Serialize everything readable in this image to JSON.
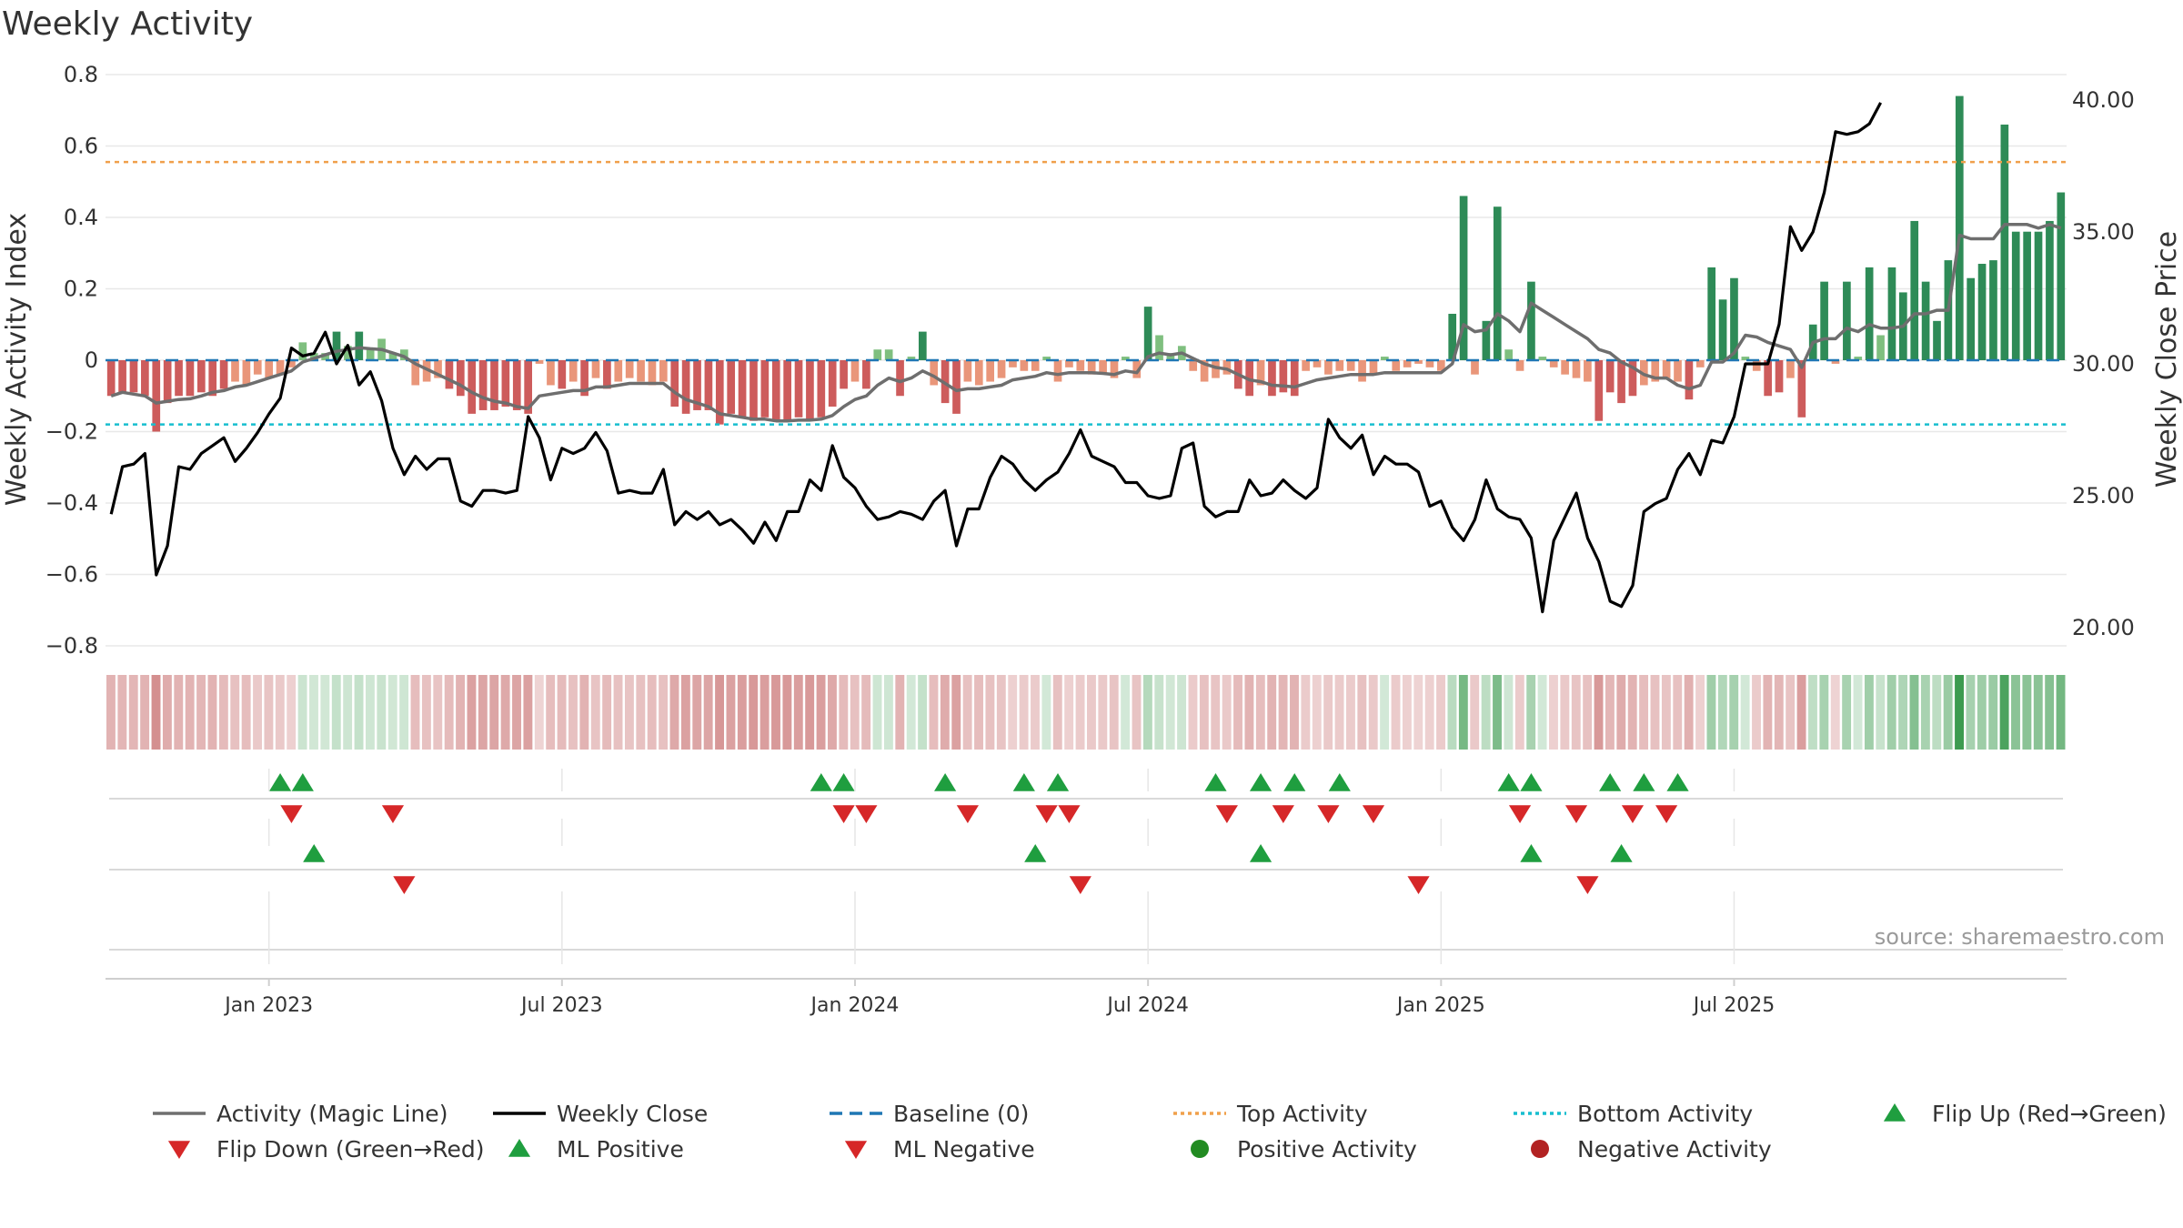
{
  "colors": {
    "pos_strong": "#2e8b57",
    "pos_light": "#7fbf7f",
    "neg_strong": "#cd5c5c",
    "neg_light": "#e9967a",
    "magic_line": "#6e6e6e",
    "close_line": "#000000",
    "baseline": "#1f77b4",
    "top_line": "#f0a04b",
    "bottom_line": "#17becf",
    "up_marker": "#1f9e3f",
    "down_marker": "#d62728",
    "positive_dot": "#228b22",
    "negative_dot": "#b22222",
    "grid": "#e8e8e8",
    "strip_red": "#e8b4b4",
    "strip_green": "#a8d8a8"
  },
  "chart_data": {
    "type": "bar+line",
    "title": "Weekly Activity",
    "ylabel": "Weekly Activity Index",
    "y2label": "Weekly Close Price",
    "ylim": [
      -0.85,
      0.82
    ],
    "y2lim": [
      18.1,
      40.8
    ],
    "yticks": [
      "0.8",
      "0.6",
      "0.4",
      "0.2",
      "0",
      "−0.2",
      "−0.4",
      "−0.6",
      "−0.8"
    ],
    "yticks_values": [
      0.8,
      0.6,
      0.4,
      0.2,
      0,
      -0.2,
      -0.4,
      -0.6,
      -0.8
    ],
    "y2ticks": [
      "40.00",
      "35.00",
      "30.00",
      "25.00",
      "20.00"
    ],
    "y2ticks_values": [
      40,
      35,
      30,
      25,
      20
    ],
    "xticks": [
      "Jan 2023",
      "Jul 2023",
      "Jan 2024",
      "Jul 2024",
      "Jan 2025",
      "Jul 2025"
    ],
    "xticks_week_index": [
      14.5,
      40.5,
      66.5,
      92.5,
      118.5,
      144.5
    ],
    "top_activity": 0.555,
    "bottom_activity": -0.18,
    "activity": [
      -0.1,
      -0.09,
      -0.09,
      -0.1,
      -0.2,
      -0.12,
      -0.1,
      -0.1,
      -0.09,
      -0.1,
      -0.08,
      -0.06,
      -0.07,
      -0.04,
      -0.05,
      -0.04,
      -0.02,
      0.05,
      0.02,
      0.02,
      0.08,
      0.04,
      0.08,
      0.03,
      0.06,
      0.02,
      0.03,
      -0.07,
      -0.06,
      -0.05,
      -0.08,
      -0.1,
      -0.15,
      -0.14,
      -0.14,
      -0.13,
      -0.14,
      -0.15,
      -0.01,
      -0.07,
      -0.08,
      -0.06,
      -0.1,
      -0.05,
      -0.08,
      -0.06,
      -0.05,
      -0.06,
      -0.07,
      -0.06,
      -0.13,
      -0.15,
      -0.14,
      -0.14,
      -0.18,
      -0.15,
      -0.16,
      -0.17,
      -0.16,
      -0.17,
      -0.17,
      -0.16,
      -0.17,
      -0.16,
      -0.13,
      -0.08,
      -0.06,
      -0.08,
      0.03,
      0.03,
      -0.1,
      0.01,
      0.08,
      -0.07,
      -0.12,
      -0.15,
      -0.06,
      -0.07,
      -0.06,
      -0.05,
      -0.02,
      -0.03,
      -0.03,
      0.01,
      -0.06,
      -0.02,
      -0.03,
      -0.04,
      -0.04,
      -0.05,
      0.01,
      -0.05,
      0.15,
      0.07,
      0.02,
      0.04,
      -0.03,
      -0.06,
      -0.05,
      -0.04,
      -0.08,
      -0.1,
      -0.07,
      -0.1,
      -0.09,
      -0.1,
      -0.03,
      -0.02,
      -0.04,
      -0.03,
      -0.03,
      -0.06,
      -0.04,
      0.01,
      -0.03,
      -0.02,
      -0.01,
      -0.02,
      -0.03,
      0.13,
      0.46,
      -0.04,
      0.11,
      0.43,
      0.03,
      -0.03,
      0.22,
      0.01,
      -0.02,
      -0.04,
      -0.05,
      -0.06,
      -0.17,
      -0.09,
      -0.12,
      -0.1,
      -0.07,
      -0.06,
      -0.05,
      -0.06,
      -0.11,
      -0.02,
      0.26,
      0.17,
      0.23,
      0.01,
      -0.03,
      -0.1,
      -0.09,
      -0.05,
      -0.16,
      0.1,
      0.22,
      -0.01,
      0.22,
      0.01,
      0.26,
      0.07,
      0.26,
      0.19,
      0.39,
      0.22,
      0.11,
      0.28,
      0.74,
      0.23,
      0.27,
      0.28,
      0.66,
      0.36,
      0.36,
      0.36,
      0.39,
      0.47
    ],
    "magic_line": [
      -0.1,
      -0.09,
      -0.095,
      -0.1,
      -0.12,
      -0.115,
      -0.11,
      -0.108,
      -0.1,
      -0.09,
      -0.085,
      -0.075,
      -0.07,
      -0.06,
      -0.05,
      -0.04,
      -0.03,
      -0.005,
      0.005,
      0.015,
      0.025,
      0.03,
      0.035,
      0.032,
      0.03,
      0.02,
      0.01,
      -0.01,
      -0.025,
      -0.04,
      -0.055,
      -0.07,
      -0.09,
      -0.105,
      -0.115,
      -0.12,
      -0.13,
      -0.135,
      -0.1,
      -0.095,
      -0.09,
      -0.085,
      -0.085,
      -0.075,
      -0.075,
      -0.07,
      -0.065,
      -0.065,
      -0.065,
      -0.065,
      -0.09,
      -0.11,
      -0.12,
      -0.13,
      -0.15,
      -0.155,
      -0.16,
      -0.165,
      -0.165,
      -0.17,
      -0.17,
      -0.168,
      -0.168,
      -0.165,
      -0.155,
      -0.13,
      -0.11,
      -0.1,
      -0.07,
      -0.05,
      -0.06,
      -0.05,
      -0.03,
      -0.045,
      -0.065,
      -0.085,
      -0.08,
      -0.08,
      -0.075,
      -0.07,
      -0.055,
      -0.05,
      -0.045,
      -0.035,
      -0.04,
      -0.035,
      -0.035,
      -0.035,
      -0.037,
      -0.04,
      -0.03,
      -0.035,
      0.01,
      0.02,
      0.015,
      0.02,
      0.005,
      -0.01,
      -0.02,
      -0.025,
      -0.04,
      -0.055,
      -0.06,
      -0.07,
      -0.072,
      -0.075,
      -0.065,
      -0.055,
      -0.05,
      -0.045,
      -0.04,
      -0.04,
      -0.04,
      -0.035,
      -0.035,
      -0.035,
      -0.035,
      -0.035,
      -0.035,
      -0.01,
      0.1,
      0.08,
      0.085,
      0.13,
      0.11,
      0.08,
      0.16,
      0.14,
      0.12,
      0.1,
      0.08,
      0.06,
      0.03,
      0.02,
      -0.005,
      -0.02,
      -0.04,
      -0.05,
      -0.05,
      -0.07,
      -0.08,
      -0.07,
      -0.005,
      -0.005,
      0.02,
      0.07,
      0.065,
      0.05,
      0.04,
      0.03,
      -0.02,
      0.05,
      0.06,
      0.06,
      0.09,
      0.08,
      0.1,
      0.09,
      0.09,
      0.095,
      0.13,
      0.13,
      0.14,
      0.14,
      0.35,
      0.34,
      0.34,
      0.34,
      0.38,
      0.38,
      0.38,
      0.37,
      0.38,
      0.37
    ],
    "weekly_close": [
      24.3,
      26.1,
      26.2,
      26.6,
      22.0,
      23.1,
      26.1,
      26.0,
      26.6,
      26.9,
      27.2,
      26.3,
      26.8,
      27.4,
      28.1,
      28.7,
      30.6,
      30.3,
      30.4,
      31.2,
      30.0,
      30.7,
      29.2,
      29.7,
      28.6,
      26.8,
      25.8,
      26.5,
      26.0,
      26.4,
      26.4,
      24.8,
      24.6,
      25.2,
      25.2,
      25.1,
      25.2,
      28.0,
      27.2,
      25.6,
      26.8,
      26.6,
      26.8,
      27.4,
      26.7,
      25.1,
      25.2,
      25.1,
      25.1,
      26.0,
      23.9,
      24.4,
      24.1,
      24.4,
      23.9,
      24.1,
      23.7,
      23.2,
      24.0,
      23.3,
      24.4,
      24.4,
      25.6,
      25.2,
      26.9,
      25.7,
      25.3,
      24.6,
      24.1,
      24.2,
      24.4,
      24.3,
      24.1,
      24.8,
      25.2,
      23.1,
      24.5,
      24.5,
      25.7,
      26.5,
      26.2,
      25.6,
      25.2,
      25.6,
      25.9,
      26.6,
      27.5,
      26.5,
      26.3,
      26.1,
      25.5,
      25.5,
      25.0,
      24.9,
      25.0,
      26.8,
      27.0,
      24.6,
      24.2,
      24.4,
      24.4,
      25.6,
      25.0,
      25.1,
      25.6,
      25.2,
      24.9,
      25.3,
      27.9,
      27.2,
      26.8,
      27.3,
      25.8,
      26.5,
      26.2,
      26.2,
      25.9,
      24.6,
      24.8,
      23.8,
      23.3,
      24.1,
      25.6,
      24.5,
      24.2,
      24.1,
      23.4,
      20.6,
      23.3,
      24.2,
      25.1,
      23.4,
      22.5,
      21.0,
      20.8,
      21.6,
      24.4,
      24.7,
      24.9,
      26.0,
      26.6,
      25.8,
      27.1,
      27.0,
      28.0,
      30.0,
      30.0,
      30.0,
      31.5,
      35.2,
      34.3,
      35.0,
      36.5,
      38.8,
      38.7,
      38.8,
      39.1,
      39.9
    ],
    "flip_up_weeks": [
      15,
      17,
      63,
      65,
      74,
      81,
      84,
      98,
      102,
      105,
      109,
      124,
      126,
      133,
      136,
      139
    ],
    "flip_down_weeks": [
      16,
      25,
      65,
      67,
      76,
      83,
      85,
      99,
      104,
      108,
      112,
      125,
      130,
      135,
      138
    ],
    "ml_positive_weeks": [
      18,
      82,
      102,
      126,
      134
    ],
    "ml_negative_weeks": [
      26,
      86,
      116,
      131
    ]
  },
  "legend": {
    "items": [
      {
        "label": "Activity (Magic Line)",
        "type": "line",
        "color": "#6e6e6e",
        "dash": "none"
      },
      {
        "label": "Weekly Close",
        "type": "line",
        "color": "#000000",
        "dash": "none"
      },
      {
        "label": "Baseline (0)",
        "type": "line",
        "color": "#1f77b4",
        "dash": "14 8"
      },
      {
        "label": "Top Activity",
        "type": "line",
        "color": "#f0a04b",
        "dash": "4 4"
      },
      {
        "label": "Bottom Activity",
        "type": "line",
        "color": "#17becf",
        "dash": "4 4"
      },
      {
        "label": "Flip Up (Red→Green)",
        "type": "triangle-up",
        "color": "#1f9e3f"
      },
      {
        "label": "Flip Down (Green→Red)",
        "type": "triangle-down",
        "color": "#d62728"
      },
      {
        "label": "ML Positive",
        "type": "triangle-up",
        "color": "#1f9e3f"
      },
      {
        "label": "ML Negative",
        "type": "triangle-down",
        "color": "#d62728"
      },
      {
        "label": "Positive Activity",
        "type": "dot",
        "color": "#228b22"
      },
      {
        "label": "Negative Activity",
        "type": "dot",
        "color": "#b22222"
      }
    ]
  },
  "source": "source: sharemaestro.com"
}
